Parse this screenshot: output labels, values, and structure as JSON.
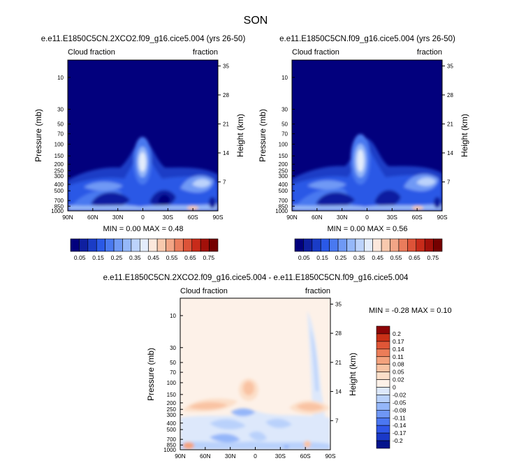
{
  "page": {
    "title": "SON"
  },
  "colors": {
    "abs_scale": [
      "#02007d",
      "#0f1fa0",
      "#1a3cc6",
      "#2a59e6",
      "#4979f0",
      "#6f99f5",
      "#95b8f9",
      "#bcd3fb",
      "#e4edfb",
      "#fce8dc",
      "#f8c9ae",
      "#f2a586",
      "#ea7c5c",
      "#dd5338",
      "#c82b1a",
      "#a2100a",
      "#750000"
    ],
    "diff_scale": [
      "#03138c",
      "#1a38c8",
      "#2f56e8",
      "#4b77f2",
      "#6f97f6",
      "#94b6f9",
      "#b9d1fb",
      "#dde8fb",
      "#fdf1e8",
      "#fcdfc9",
      "#f9c3a3",
      "#f4a27d",
      "#ec7d58",
      "#df5637",
      "#c93017",
      "#8c0507"
    ]
  },
  "chart_data": [
    {
      "type": "heatmap",
      "title": "e.e11.E1850C5CN.2XCO2.f09_g16.cice5.004 (yrs 26-50)",
      "left_string": "Cloud fraction",
      "right_string": "fraction",
      "xlabel": "",
      "ylabel": "Pressure (mb)",
      "ylabel_right": "Height (km)",
      "x_ticks": [
        "90N",
        "60N",
        "30N",
        "0",
        "30S",
        "60S",
        "90S"
      ],
      "y_ticks": [
        "10",
        "30",
        "50",
        "70",
        "100",
        "150",
        "200",
        "250",
        "300",
        "400",
        "500",
        "700",
        "850",
        "1000"
      ],
      "y_right_ticks": [
        "35",
        "28",
        "21",
        "14",
        "7"
      ],
      "stats": "MIN =  0.00   MAX =   0.48",
      "colorbar_labels": [
        "0.05",
        "0.15",
        "0.25",
        "0.35",
        "0.45",
        "0.55",
        "0.65",
        "0.75"
      ],
      "colorbar_levels": [
        0,
        0.05,
        0.1,
        0.15,
        0.2,
        0.25,
        0.3,
        0.35,
        0.4,
        0.45,
        0.5,
        0.55,
        0.6,
        0.65,
        0.7,
        0.75,
        0.8
      ]
    },
    {
      "type": "heatmap",
      "title": "e.e11.E1850C5CN.f09_g16.cice5.004 (yrs 26-50)",
      "left_string": "Cloud fraction",
      "right_string": "fraction",
      "xlabel": "",
      "ylabel": "Pressure (mb)",
      "ylabel_right": "Height (km)",
      "x_ticks": [
        "90N",
        "60N",
        "30N",
        "0",
        "30S",
        "60S",
        "90S"
      ],
      "y_ticks": [
        "10",
        "30",
        "50",
        "70",
        "100",
        "150",
        "200",
        "250",
        "300",
        "400",
        "500",
        "700",
        "850",
        "1000"
      ],
      "y_right_ticks": [
        "35",
        "28",
        "21",
        "14",
        "7"
      ],
      "stats": "MIN =  0.00   MAX =   0.56",
      "colorbar_labels": [
        "0.05",
        "0.15",
        "0.25",
        "0.35",
        "0.45",
        "0.55",
        "0.65",
        "0.75"
      ],
      "colorbar_levels": [
        0,
        0.05,
        0.1,
        0.15,
        0.2,
        0.25,
        0.3,
        0.35,
        0.4,
        0.45,
        0.5,
        0.55,
        0.6,
        0.65,
        0.7,
        0.75,
        0.8
      ]
    },
    {
      "type": "heatmap",
      "title": "e.e11.E1850C5CN.2XCO2.f09_g16.cice5.004 - e.e11.E1850C5CN.f09_g16.cice5.004",
      "left_string": "Cloud fraction",
      "right_string": "fraction",
      "xlabel": "",
      "ylabel": "Pressure (mb)",
      "ylabel_right": "Height (km)",
      "x_ticks": [
        "90N",
        "60N",
        "30N",
        "0",
        "30S",
        "60S",
        "90S"
      ],
      "y_ticks": [
        "10",
        "30",
        "50",
        "70",
        "100",
        "150",
        "200",
        "250",
        "300",
        "400",
        "500",
        "700",
        "850",
        "1000"
      ],
      "y_right_ticks": [
        "35",
        "28",
        "21",
        "14",
        "7"
      ],
      "stats": "MIN =  -0.28   MAX =   0.10",
      "colorbar_labels": [
        "0.2",
        "0.17",
        "0.14",
        "0.11",
        "0.08",
        "0.05",
        "0.02",
        "0",
        "-0.02",
        "-0.05",
        "-0.08",
        "-0.11",
        "-0.14",
        "-0.17",
        "-0.2"
      ]
    }
  ]
}
